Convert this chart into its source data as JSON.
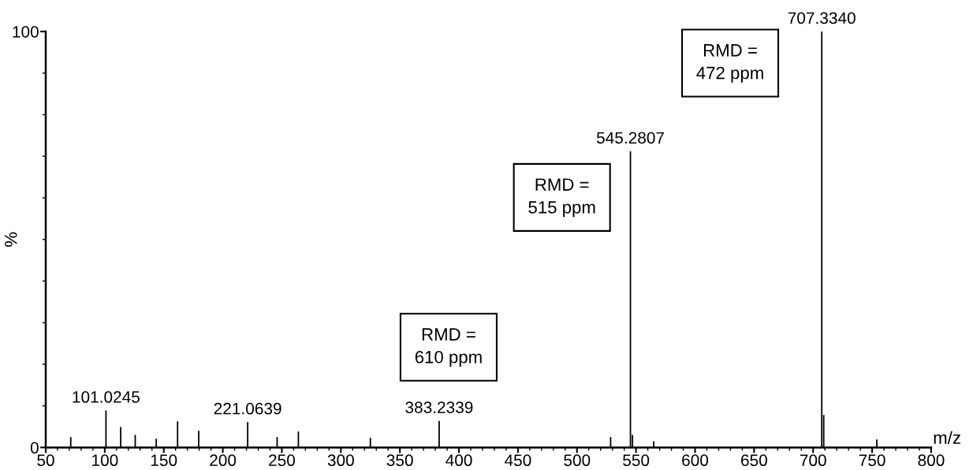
{
  "chart_data": {
    "type": "bar",
    "xlabel": "m/z",
    "ylabel": "%",
    "x": [
      71.2,
      101.0245,
      113.5,
      125.8,
      143.6,
      161.7,
      179.6,
      221.0639,
      246,
      264,
      325,
      383.2339,
      528.5,
      545.2807,
      547,
      565,
      707.334,
      709,
      754
    ],
    "values": [
      2.5,
      8.9,
      4.9,
      3.0,
      2.1,
      6.3,
      4.0,
      6.1,
      2.5,
      3.8,
      2.3,
      6.4,
      2.5,
      71.2,
      3.0,
      1.5,
      100,
      7.8,
      1.9
    ],
    "color": "#000000",
    "annotations": [
      {
        "text": "101.0245",
        "x": 101.0245,
        "y": 8.9
      },
      {
        "text": "221.0639",
        "x": 221.0639,
        "y": 6.1
      },
      {
        "text": "383.2339",
        "x": 383.2339,
        "y": 6.4
      },
      {
        "text": "545.2807",
        "x": 545.2807,
        "y": 71.2
      },
      {
        "text": "707.3340",
        "x": 707.334,
        "y": 100
      },
      "RMD =\n610 ppm",
      "RMD =\n515 ppm",
      "RMD =\n472 ppm"
    ],
    "xlim": [
      50,
      800
    ],
    "ylim": [
      0,
      100
    ],
    "xticks": [
      50,
      100,
      150,
      200,
      250,
      300,
      350,
      400,
      450,
      500,
      550,
      600,
      650,
      700,
      750,
      800
    ],
    "yticks": [
      0,
      100
    ],
    "grid": false,
    "legend": false
  }
}
